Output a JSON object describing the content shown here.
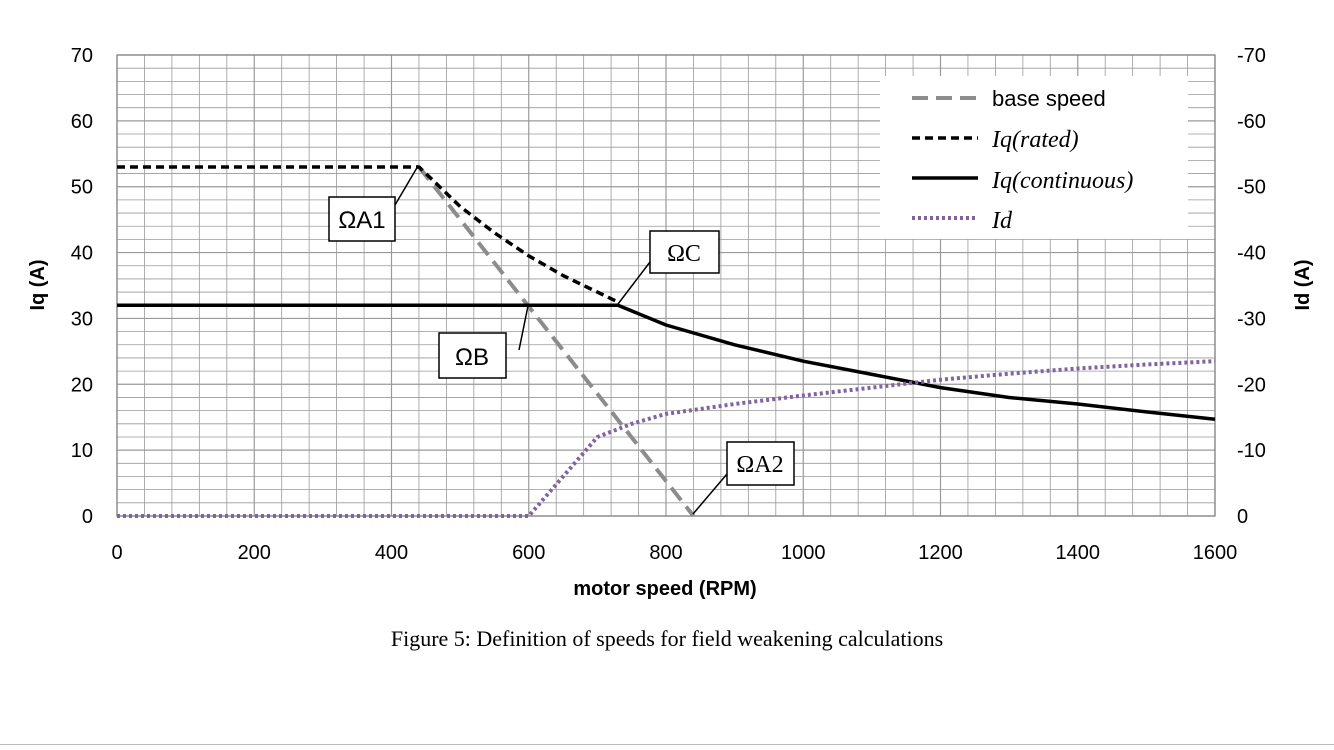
{
  "caption": "Figure 5: Definition of speeds for field weakening calculations",
  "colors": {
    "base_speed": "#8c8c8c",
    "iq_rated": "#000000",
    "iq_continuous": "#000000",
    "id": "#8064a2",
    "grid": "#9a9a9a"
  },
  "chart_data": {
    "type": "line",
    "title": "",
    "xlabel": "motor speed (RPM)",
    "ylabel": "Iq (A)",
    "y2label": "Id (A)",
    "xlim": [
      0,
      1600
    ],
    "ylim": [
      0,
      70
    ],
    "y2lim": [
      0,
      -70
    ],
    "x_ticks": [
      "0",
      "200",
      "400",
      "600",
      "800",
      "1000",
      "1200",
      "1400",
      "1600"
    ],
    "y_ticks": [
      "0",
      "10",
      "20",
      "30",
      "40",
      "50",
      "60",
      "70"
    ],
    "y2_ticks": [
      "0",
      "-10",
      "-20",
      "-30",
      "-40",
      "-50",
      "-60",
      "-70"
    ],
    "grid": true,
    "legend_position": "top-right",
    "series": [
      {
        "name": "base speed",
        "style": "long-dash",
        "axis": "left",
        "x": [
          440,
          840
        ],
        "y": [
          53,
          0
        ]
      },
      {
        "name": "Iq(rated)",
        "style": "dash",
        "axis": "left",
        "x": [
          0,
          440,
          460,
          500,
          550,
          600,
          650,
          700,
          730
        ],
        "y": [
          53,
          53,
          51,
          47,
          43,
          39.5,
          36.5,
          34,
          32.5
        ]
      },
      {
        "name": "Iq(continuous)",
        "style": "solid",
        "axis": "left",
        "x": [
          0,
          730,
          800,
          900,
          1000,
          1100,
          1200,
          1300,
          1400,
          1500,
          1600
        ],
        "y": [
          32,
          32,
          29,
          26,
          23.5,
          21.5,
          19.5,
          18,
          17,
          15.8,
          14.7
        ]
      },
      {
        "name": "Id",
        "style": "dot",
        "axis": "right",
        "x": [
          0,
          600,
          700,
          750,
          800,
          900,
          1000,
          1100,
          1200,
          1300,
          1400,
          1500,
          1600
        ],
        "y": [
          0,
          0,
          -12,
          -14,
          -15.5,
          -17,
          -18.3,
          -19.5,
          -20.7,
          -21.6,
          -22.4,
          -23,
          -23.5
        ]
      }
    ],
    "annotations": [
      {
        "label": "ΩA1",
        "target": [
          440,
          53
        ]
      },
      {
        "label": "ΩC",
        "target": [
          730,
          32
        ]
      },
      {
        "label": "ΩB",
        "target": [
          600,
          32
        ]
      },
      {
        "label": "ΩA2",
        "target": [
          840,
          0
        ]
      }
    ]
  }
}
